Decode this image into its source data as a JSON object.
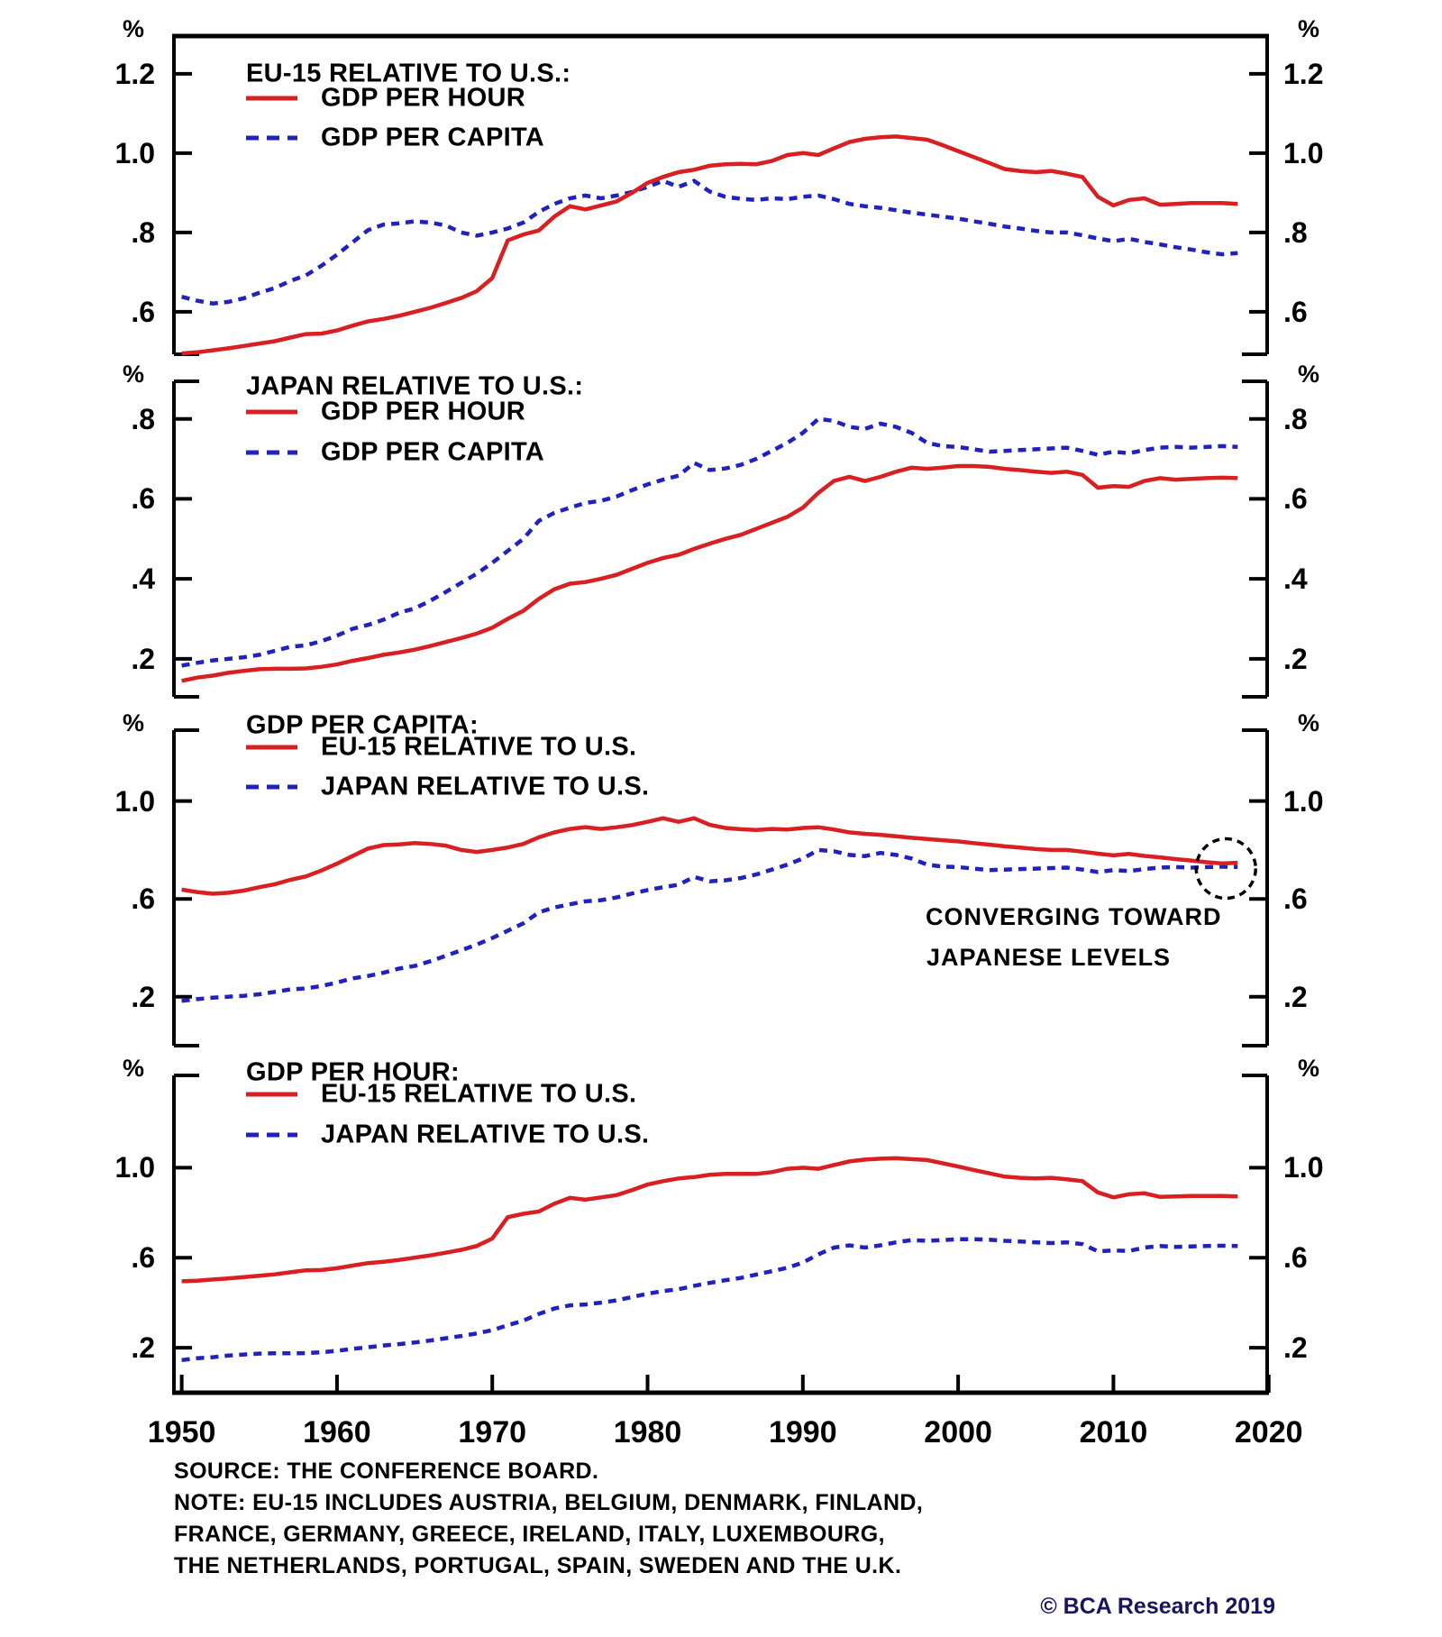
{
  "page": {
    "background": "#ffffff",
    "copyright": "© BCA Research 2019"
  },
  "colors": {
    "red_series": "#d81f21",
    "blue_series": "#2121bf",
    "axis_and_text": "#000000",
    "copyright_text": "#16165f",
    "background": "#ffffff"
  },
  "footer": {
    "source_line": "SOURCE: THE CONFERENCE BOARD.",
    "note_lines": [
      "NOTE: EU-15 INCLUDES AUSTRIA, BELGIUM, DENMARK, FINLAND,",
      "FRANCE, GERMANY, GREECE, IRELAND, ITALY, LUXEMBOURG,",
      "THE NETHERLANDS, PORTUGAL, SPAIN, SWEDEN AND THE U.K."
    ]
  },
  "chart_data": {
    "type": "line",
    "grid": false,
    "legend_position": "top-left-inside",
    "x_axis": {
      "range": [
        1949.5,
        2019.9
      ],
      "ticks": [
        1950,
        1960,
        1970,
        1980,
        1990,
        2000,
        2010,
        2020
      ],
      "labels": [
        "1950",
        "1960",
        "1970",
        "1980",
        "1990",
        "2000",
        "2010",
        "2020"
      ]
    },
    "x_years": [
      1950,
      1951,
      1952,
      1953,
      1954,
      1955,
      1956,
      1957,
      1958,
      1959,
      1960,
      1961,
      1962,
      1963,
      1964,
      1965,
      1966,
      1967,
      1968,
      1969,
      1970,
      1971,
      1972,
      1973,
      1974,
      1975,
      1976,
      1977,
      1978,
      1979,
      1980,
      1981,
      1982,
      1983,
      1984,
      1985,
      1986,
      1987,
      1988,
      1989,
      1990,
      1991,
      1992,
      1993,
      1994,
      1995,
      1996,
      1997,
      1998,
      1999,
      2000,
      2001,
      2002,
      2003,
      2004,
      2005,
      2006,
      2007,
      2008,
      2009,
      2010,
      2011,
      2012,
      2013,
      2014,
      2015,
      2016,
      2017,
      2018
    ],
    "series_values": {
      "eu15_gdp_per_hour": [
        0.495,
        0.498,
        0.503,
        0.508,
        0.514,
        0.52,
        0.526,
        0.535,
        0.544,
        0.545,
        0.553,
        0.565,
        0.576,
        0.582,
        0.59,
        0.6,
        0.61,
        0.622,
        0.635,
        0.652,
        0.685,
        0.78,
        0.795,
        0.805,
        0.84,
        0.866,
        0.858,
        0.868,
        0.878,
        0.9,
        0.925,
        0.94,
        0.952,
        0.958,
        0.968,
        0.972,
        0.973,
        0.972,
        0.98,
        0.995,
        1.0,
        0.995,
        1.012,
        1.028,
        1.036,
        1.04,
        1.042,
        1.038,
        1.034,
        1.02,
        1.005,
        0.99,
        0.975,
        0.96,
        0.955,
        0.952,
        0.955,
        0.948,
        0.94,
        0.89,
        0.868,
        0.882,
        0.886,
        0.87,
        0.872,
        0.874,
        0.874,
        0.874,
        0.872
      ],
      "eu15_gdp_per_capita": [
        0.638,
        0.628,
        0.621,
        0.625,
        0.634,
        0.648,
        0.66,
        0.678,
        0.692,
        0.716,
        0.744,
        0.775,
        0.806,
        0.82,
        0.823,
        0.828,
        0.825,
        0.818,
        0.8,
        0.792,
        0.8,
        0.81,
        0.825,
        0.852,
        0.872,
        0.886,
        0.893,
        0.886,
        0.893,
        0.902,
        0.915,
        0.93,
        0.915,
        0.93,
        0.903,
        0.89,
        0.885,
        0.882,
        0.886,
        0.884,
        0.89,
        0.893,
        0.884,
        0.872,
        0.866,
        0.862,
        0.856,
        0.85,
        0.845,
        0.84,
        0.835,
        0.828,
        0.822,
        0.815,
        0.81,
        0.804,
        0.8,
        0.8,
        0.793,
        0.785,
        0.778,
        0.784,
        0.776,
        0.77,
        0.763,
        0.757,
        0.75,
        0.745,
        0.748
      ],
      "japan_gdp_per_hour": [
        0.145,
        0.153,
        0.158,
        0.165,
        0.17,
        0.174,
        0.175,
        0.175,
        0.176,
        0.18,
        0.186,
        0.195,
        0.202,
        0.21,
        0.216,
        0.223,
        0.232,
        0.242,
        0.252,
        0.263,
        0.278,
        0.3,
        0.32,
        0.35,
        0.374,
        0.388,
        0.392,
        0.4,
        0.41,
        0.425,
        0.44,
        0.452,
        0.46,
        0.475,
        0.488,
        0.5,
        0.51,
        0.525,
        0.54,
        0.555,
        0.578,
        0.615,
        0.645,
        0.655,
        0.645,
        0.655,
        0.668,
        0.678,
        0.675,
        0.678,
        0.682,
        0.682,
        0.68,
        0.675,
        0.672,
        0.668,
        0.665,
        0.668,
        0.66,
        0.628,
        0.632,
        0.63,
        0.645,
        0.652,
        0.648,
        0.65,
        0.652,
        0.653,
        0.652
      ],
      "japan_gdp_per_capita": [
        0.183,
        0.19,
        0.196,
        0.2,
        0.204,
        0.21,
        0.22,
        0.23,
        0.234,
        0.244,
        0.258,
        0.275,
        0.285,
        0.298,
        0.315,
        0.326,
        0.345,
        0.367,
        0.39,
        0.413,
        0.44,
        0.47,
        0.5,
        0.545,
        0.565,
        0.578,
        0.59,
        0.595,
        0.606,
        0.622,
        0.636,
        0.648,
        0.658,
        0.69,
        0.672,
        0.676,
        0.685,
        0.7,
        0.72,
        0.74,
        0.765,
        0.8,
        0.795,
        0.78,
        0.775,
        0.788,
        0.78,
        0.765,
        0.74,
        0.732,
        0.73,
        0.724,
        0.718,
        0.72,
        0.722,
        0.724,
        0.726,
        0.728,
        0.72,
        0.71,
        0.718,
        0.714,
        0.722,
        0.728,
        0.73,
        0.728,
        0.73,
        0.732,
        0.73
      ]
    },
    "panels": [
      {
        "title": "EU-15 RELATIVE TO U.S.:",
        "unit_label": "%",
        "ylim": [
          0.493,
          1.295
        ],
        "y_ticks": [
          {
            "label": "1.2",
            "value": 1.2
          },
          {
            "label": "1.0",
            "value": 1.0
          },
          {
            "label": ".8",
            "value": 0.8
          },
          {
            "label": ".6",
            "value": 0.6
          }
        ],
        "series": [
          {
            "name": "GDP PER HOUR",
            "key": "eu15_gdp_per_hour",
            "color": "red",
            "style": "solid"
          },
          {
            "name": "GDP PER CAPITA",
            "key": "eu15_gdp_per_capita",
            "color": "blue",
            "style": "dashed"
          }
        ]
      },
      {
        "title": "JAPAN RELATIVE TO U.S.:",
        "unit_label": "%",
        "ylim": [
          0.105,
          0.894
        ],
        "y_ticks": [
          {
            "label": ".8",
            "value": 0.8
          },
          {
            "label": ".6",
            "value": 0.6
          },
          {
            "label": ".4",
            "value": 0.4
          },
          {
            "label": ".2",
            "value": 0.2
          }
        ],
        "series": [
          {
            "name": "GDP PER HOUR",
            "key": "japan_gdp_per_hour",
            "color": "red",
            "style": "solid"
          },
          {
            "name": "GDP PER CAPITA",
            "key": "japan_gdp_per_capita",
            "color": "blue",
            "style": "dashed"
          }
        ]
      },
      {
        "title": "GDP PER CAPITA:",
        "unit_label": "%",
        "ylim": [
          0.0,
          1.29
        ],
        "y_ticks": [
          {
            "label": "1.0",
            "value": 1.0
          },
          {
            "label": ".6",
            "value": 0.6
          },
          {
            "label": ".2",
            "value": 0.2
          }
        ],
        "series": [
          {
            "name": "EU-15 RELATIVE TO U.S.",
            "key": "eu15_gdp_per_capita",
            "color": "red",
            "style": "solid"
          },
          {
            "name": "JAPAN RELATIVE TO U.S.",
            "key": "japan_gdp_per_capita",
            "color": "blue",
            "style": "dashed"
          }
        ],
        "annotation": {
          "lines": [
            "CONVERGING TOWARD",
            "JAPANESE LEVELS"
          ],
          "circled_point_year": 2018
        }
      },
      {
        "title": "GDP PER HOUR:",
        "unit_label": "%",
        "ylim": [
          0.0,
          1.41
        ],
        "y_ticks": [
          {
            "label": "1.0",
            "value": 1.0
          },
          {
            "label": ".6",
            "value": 0.6
          },
          {
            "label": ".2",
            "value": 0.2
          }
        ],
        "series": [
          {
            "name": "EU-15 RELATIVE TO U.S.",
            "key": "eu15_gdp_per_hour",
            "color": "red",
            "style": "solid"
          },
          {
            "name": "JAPAN RELATIVE TO U.S.",
            "key": "japan_gdp_per_hour",
            "color": "blue",
            "style": "dashed"
          }
        ]
      }
    ]
  }
}
